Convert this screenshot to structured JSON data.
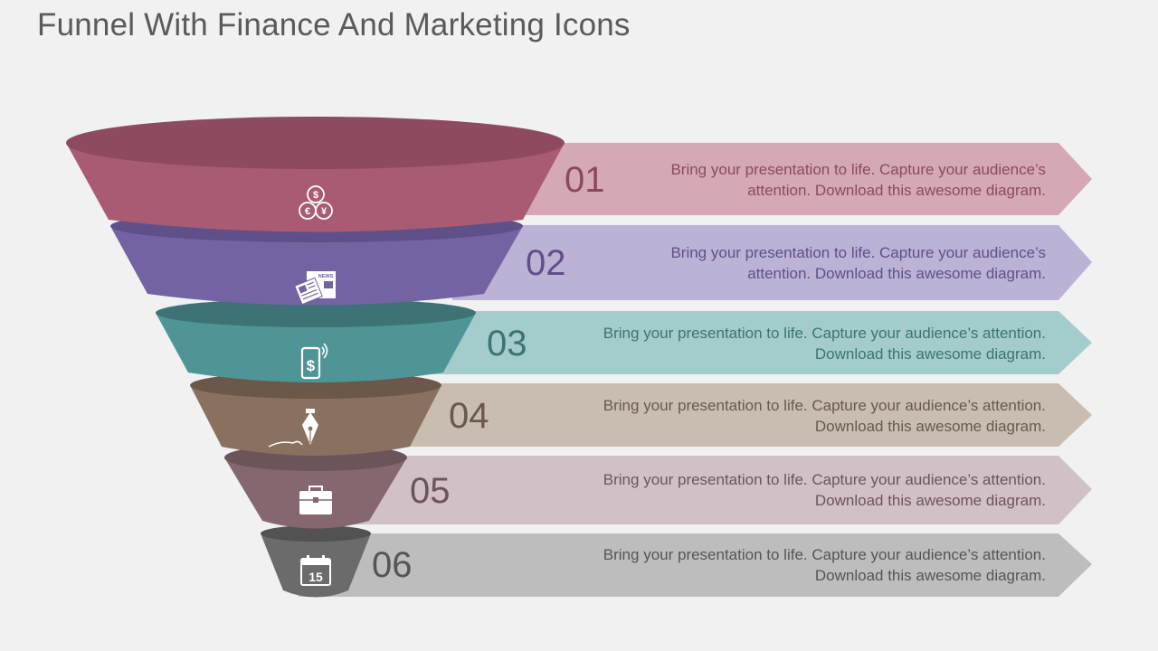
{
  "title": "Funnel With Finance And Marketing Icons",
  "stages": [
    {
      "number": "01",
      "text": "Bring your presentation to life. Capture your audience’s attention.  Download this awesome diagram.",
      "icon": "currency-icon",
      "colors": {
        "body": "#a85b72",
        "top": "#8e4a5e",
        "arrow": "#d5a9b4",
        "num": "#8b4a5c",
        "text": "#8b4a5c"
      }
    },
    {
      "number": "02",
      "text": "Bring your presentation to life. Capture your audience’s attention.  Download this awesome diagram.",
      "icon": "newspaper-icon",
      "colors": {
        "body": "#7463a3",
        "top": "#5f5089",
        "arrow": "#bbb2d6",
        "num": "#5f5089",
        "text": "#5f5089"
      }
    },
    {
      "number": "03",
      "text": "Bring your presentation to life. Capture your audience’s attention. Download this awesome diagram.",
      "icon": "mobile-payment-icon",
      "colors": {
        "body": "#4f9598",
        "top": "#3d7375",
        "arrow": "#a4cccd",
        "num": "#3d7375",
        "text": "#3d7375"
      }
    },
    {
      "number": "04",
      "text": "Bring your presentation to life. Capture your audience’s attention. Download this awesome diagram.",
      "icon": "pen-nib-icon",
      "colors": {
        "body": "#8a705e",
        "top": "#6b584b",
        "arrow": "#c9bcb0",
        "num": "#6b584b",
        "text": "#6b584b"
      }
    },
    {
      "number": "05",
      "text": "Bring your presentation to life. Capture your audience’s attention. Download this awesome diagram.",
      "icon": "briefcase-icon",
      "colors": {
        "body": "#86666f",
        "top": "#6c545b",
        "arrow": "#d1c1c6",
        "num": "#6c545b",
        "text": "#6c545b"
      }
    },
    {
      "number": "06",
      "text": "Bring your presentation to life. Capture your audience’s attention. Download this awesome diagram.",
      "icon": "calendar-icon",
      "colors": {
        "body": "#6b6b6b",
        "top": "#525252",
        "arrow": "#bdbdbd",
        "num": "#555555",
        "text": "#555555"
      }
    }
  ],
  "calendar_day": "15",
  "currency_symbols": [
    "$",
    "€",
    "¥"
  ],
  "newspaper_label": "NEWS"
}
